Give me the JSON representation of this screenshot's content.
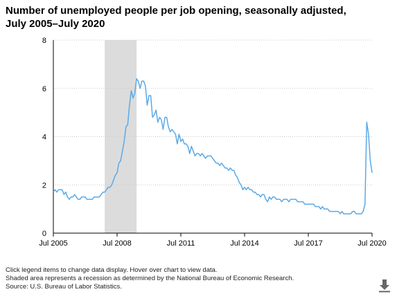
{
  "chart_data": {
    "type": "line",
    "title": "Number of unemployed people per job opening, seasonally adjusted, July 2005–July 2020",
    "xlabel": "",
    "ylabel": "",
    "ylim": [
      0,
      8
    ],
    "yticks": [
      "0",
      "2",
      "4",
      "6",
      "8"
    ],
    "xticks": [
      "Jul 2005",
      "Jul 2008",
      "Jul 2011",
      "Jul 2014",
      "Jul 2017",
      "Jul 2020"
    ],
    "grid": "horizontal dotted",
    "recession_shading": {
      "start": "Dec 2007",
      "end": "Jun 2009",
      "color": "#dcdcdc"
    },
    "series": [
      {
        "color": "#5aa9e6",
        "points": [
          [
            "2005-07",
            1.7
          ],
          [
            "2005-08",
            1.8
          ],
          [
            "2005-09",
            1.7
          ],
          [
            "2005-10",
            1.8
          ],
          [
            "2005-11",
            1.8
          ],
          [
            "2005-12",
            1.8
          ],
          [
            "2006-01",
            1.6
          ],
          [
            "2006-02",
            1.7
          ],
          [
            "2006-03",
            1.5
          ],
          [
            "2006-04",
            1.4
          ],
          [
            "2006-05",
            1.5
          ],
          [
            "2006-06",
            1.5
          ],
          [
            "2006-07",
            1.6
          ],
          [
            "2006-08",
            1.5
          ],
          [
            "2006-09",
            1.4
          ],
          [
            "2006-10",
            1.4
          ],
          [
            "2006-11",
            1.5
          ],
          [
            "2006-12",
            1.5
          ],
          [
            "2007-01",
            1.5
          ],
          [
            "2007-02",
            1.4
          ],
          [
            "2007-03",
            1.4
          ],
          [
            "2007-04",
            1.4
          ],
          [
            "2007-05",
            1.4
          ],
          [
            "2007-06",
            1.5
          ],
          [
            "2007-07",
            1.5
          ],
          [
            "2007-08",
            1.5
          ],
          [
            "2007-09",
            1.5
          ],
          [
            "2007-10",
            1.6
          ],
          [
            "2007-11",
            1.7
          ],
          [
            "2007-12",
            1.7
          ],
          [
            "2008-01",
            1.8
          ],
          [
            "2008-02",
            1.9
          ],
          [
            "2008-03",
            1.9
          ],
          [
            "2008-04",
            2.0
          ],
          [
            "2008-05",
            2.2
          ],
          [
            "2008-06",
            2.4
          ],
          [
            "2008-07",
            2.5
          ],
          [
            "2008-08",
            2.9
          ],
          [
            "2008-09",
            3.0
          ],
          [
            "2008-10",
            3.4
          ],
          [
            "2008-11",
            3.8
          ],
          [
            "2008-12",
            4.4
          ],
          [
            "2009-01",
            4.5
          ],
          [
            "2009-02",
            5.3
          ],
          [
            "2009-03",
            5.9
          ],
          [
            "2009-04",
            5.6
          ],
          [
            "2009-05",
            5.8
          ],
          [
            "2009-06",
            6.4
          ],
          [
            "2009-07",
            6.3
          ],
          [
            "2009-08",
            6.0
          ],
          [
            "2009-09",
            6.3
          ],
          [
            "2009-10",
            6.3
          ],
          [
            "2009-11",
            6.1
          ],
          [
            "2009-12",
            5.3
          ],
          [
            "2010-01",
            5.7
          ],
          [
            "2010-02",
            5.7
          ],
          [
            "2010-03",
            4.8
          ],
          [
            "2010-04",
            4.9
          ],
          [
            "2010-05",
            5.1
          ],
          [
            "2010-06",
            4.6
          ],
          [
            "2010-07",
            4.8
          ],
          [
            "2010-08",
            4.7
          ],
          [
            "2010-09",
            4.3
          ],
          [
            "2010-10",
            4.8
          ],
          [
            "2010-11",
            4.8
          ],
          [
            "2010-12",
            4.4
          ],
          [
            "2011-01",
            4.2
          ],
          [
            "2011-02",
            4.3
          ],
          [
            "2011-03",
            4.2
          ],
          [
            "2011-04",
            4.1
          ],
          [
            "2011-05",
            3.7
          ],
          [
            "2011-06",
            4.1
          ],
          [
            "2011-07",
            3.8
          ],
          [
            "2011-08",
            3.9
          ],
          [
            "2011-09",
            3.7
          ],
          [
            "2011-10",
            3.7
          ],
          [
            "2011-11",
            3.6
          ],
          [
            "2011-12",
            3.3
          ],
          [
            "2012-01",
            3.6
          ],
          [
            "2012-02",
            3.4
          ],
          [
            "2012-03",
            3.2
          ],
          [
            "2012-04",
            3.3
          ],
          [
            "2012-05",
            3.3
          ],
          [
            "2012-06",
            3.2
          ],
          [
            "2012-07",
            3.3
          ],
          [
            "2012-08",
            3.2
          ],
          [
            "2012-09",
            3.1
          ],
          [
            "2012-10",
            3.2
          ],
          [
            "2012-11",
            3.2
          ],
          [
            "2012-12",
            3.2
          ],
          [
            "2013-01",
            3.1
          ],
          [
            "2013-02",
            3.0
          ],
          [
            "2013-03",
            2.9
          ],
          [
            "2013-04",
            2.9
          ],
          [
            "2013-05",
            2.8
          ],
          [
            "2013-06",
            2.9
          ],
          [
            "2013-07",
            2.8
          ],
          [
            "2013-08",
            2.7
          ],
          [
            "2013-09",
            2.7
          ],
          [
            "2013-10",
            2.6
          ],
          [
            "2013-11",
            2.7
          ],
          [
            "2013-12",
            2.6
          ],
          [
            "2014-01",
            2.6
          ],
          [
            "2014-02",
            2.4
          ],
          [
            "2014-03",
            2.3
          ],
          [
            "2014-04",
            2.1
          ],
          [
            "2014-05",
            2.0
          ],
          [
            "2014-06",
            1.8
          ],
          [
            "2014-07",
            1.9
          ],
          [
            "2014-08",
            1.8
          ],
          [
            "2014-09",
            1.9
          ],
          [
            "2014-10",
            1.8
          ],
          [
            "2014-11",
            1.8
          ],
          [
            "2014-12",
            1.7
          ],
          [
            "2015-01",
            1.7
          ],
          [
            "2015-02",
            1.6
          ],
          [
            "2015-03",
            1.6
          ],
          [
            "2015-04",
            1.5
          ],
          [
            "2015-05",
            1.6
          ],
          [
            "2015-06",
            1.6
          ],
          [
            "2015-07",
            1.4
          ],
          [
            "2015-08",
            1.3
          ],
          [
            "2015-09",
            1.5
          ],
          [
            "2015-10",
            1.4
          ],
          [
            "2015-11",
            1.5
          ],
          [
            "2015-12",
            1.5
          ],
          [
            "2016-01",
            1.4
          ],
          [
            "2016-02",
            1.4
          ],
          [
            "2016-03",
            1.4
          ],
          [
            "2016-04",
            1.3
          ],
          [
            "2016-05",
            1.4
          ],
          [
            "2016-06",
            1.4
          ],
          [
            "2016-07",
            1.4
          ],
          [
            "2016-08",
            1.3
          ],
          [
            "2016-09",
            1.4
          ],
          [
            "2016-10",
            1.4
          ],
          [
            "2016-11",
            1.4
          ],
          [
            "2016-12",
            1.4
          ],
          [
            "2017-01",
            1.3
          ],
          [
            "2017-02",
            1.3
          ],
          [
            "2017-03",
            1.3
          ],
          [
            "2017-04",
            1.3
          ],
          [
            "2017-05",
            1.2
          ],
          [
            "2017-06",
            1.2
          ],
          [
            "2017-07",
            1.2
          ],
          [
            "2017-08",
            1.2
          ],
          [
            "2017-09",
            1.2
          ],
          [
            "2017-10",
            1.2
          ],
          [
            "2017-11",
            1.1
          ],
          [
            "2017-12",
            1.1
          ],
          [
            "2018-01",
            1.1
          ],
          [
            "2018-02",
            1.0
          ],
          [
            "2018-03",
            1.1
          ],
          [
            "2018-04",
            1.0
          ],
          [
            "2018-05",
            1.0
          ],
          [
            "2018-06",
            1.0
          ],
          [
            "2018-07",
            0.9
          ],
          [
            "2018-08",
            0.9
          ],
          [
            "2018-09",
            0.9
          ],
          [
            "2018-10",
            0.9
          ],
          [
            "2018-11",
            0.9
          ],
          [
            "2018-12",
            0.9
          ],
          [
            "2019-01",
            0.8
          ],
          [
            "2019-02",
            0.9
          ],
          [
            "2019-03",
            0.8
          ],
          [
            "2019-04",
            0.8
          ],
          [
            "2019-05",
            0.8
          ],
          [
            "2019-06",
            0.8
          ],
          [
            "2019-07",
            0.8
          ],
          [
            "2019-08",
            0.9
          ],
          [
            "2019-09",
            0.9
          ],
          [
            "2019-10",
            0.8
          ],
          [
            "2019-11",
            0.8
          ],
          [
            "2019-12",
            0.8
          ],
          [
            "2020-01",
            0.8
          ],
          [
            "2020-02",
            0.9
          ],
          [
            "2020-03",
            1.2
          ],
          [
            "2020-04",
            4.6
          ],
          [
            "2020-05",
            4.1
          ],
          [
            "2020-06",
            3.0
          ],
          [
            "2020-07",
            2.5
          ]
        ]
      }
    ]
  },
  "notes": [
    "Click legend items to change data display. Hover over chart to view data.",
    "Shaded area represents a recession as determined by the National Bureau of Economic Research.",
    "Source: U.S. Bureau of Labor Statistics."
  ],
  "icons": {
    "download": "download-icon"
  }
}
